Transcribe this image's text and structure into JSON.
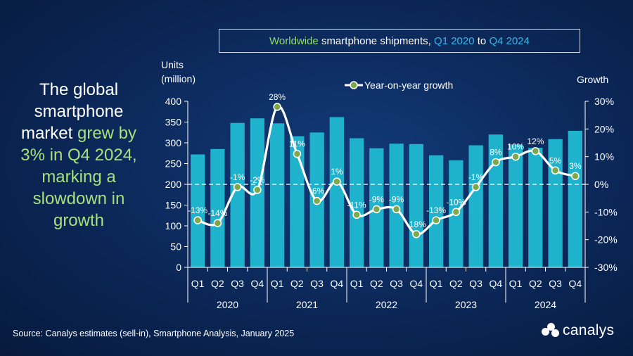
{
  "title": {
    "part1": "Worldwide",
    "part2": "smartphone shipments,",
    "part3": "Q1 2020",
    "part4": "to",
    "part5": "Q4 2024"
  },
  "headline": {
    "part1": "The global smartphone market",
    "part2": "grew by 3% in Q4 2024, marking a slowdown in growth"
  },
  "source": "Source: Canalys estimates (sell-in), Smartphone Analysis, January 2025",
  "logo": "canalys",
  "colors": {
    "bar": "#1fb2cc",
    "line": "#ffffff",
    "marker": "#7fa84a",
    "title_green": "#8fdc6a",
    "title_blue": "#39b6e6"
  },
  "chart_data": {
    "type": "bar",
    "y_left_label_line1": "Units",
    "y_left_label_line2": "(million)",
    "y_right_label": "Growth",
    "y_left_lim": [
      0,
      400
    ],
    "y_left_ticks": [
      "0",
      "50",
      "100",
      "150",
      "200",
      "250",
      "300",
      "350",
      "400"
    ],
    "y_right_lim": [
      -30,
      30
    ],
    "y_right_ticks": [
      "-30%",
      "-20%",
      "-10%",
      "0%",
      "10%",
      "20%",
      "30%"
    ],
    "categories": [
      "Q1",
      "Q2",
      "Q3",
      "Q4",
      "Q1",
      "Q2",
      "Q3",
      "Q4",
      "Q1",
      "Q2",
      "Q3",
      "Q4",
      "Q1",
      "Q2",
      "Q3",
      "Q4",
      "Q1",
      "Q2",
      "Q3",
      "Q4"
    ],
    "years": [
      "2020",
      "2021",
      "2022",
      "2023",
      "2024"
    ],
    "legend": "Year-on-year growth",
    "series": [
      {
        "name": "Units (million)",
        "values": [
          272,
          285,
          348,
          359,
          347,
          316,
          325,
          362,
          311,
          287,
          298,
          297,
          270,
          258,
          294,
          320,
          296,
          288,
          309,
          329
        ]
      },
      {
        "name": "Year-on-year growth",
        "values": [
          -13,
          -14,
          -1,
          -2,
          28,
          11,
          -6,
          1,
          -11,
          -9,
          -9,
          -18,
          -13,
          -10,
          -1,
          8,
          10,
          12,
          5,
          3
        ],
        "labels": [
          "-13%",
          "-14%",
          "-1%",
          "-2%",
          "28%",
          "11%",
          "-6%",
          "1%",
          "-11%",
          "-9%",
          "-9%",
          "-18%",
          "-13%",
          "-10%",
          "-1%",
          "8%",
          "10%",
          "12%",
          "5%",
          "3%"
        ]
      }
    ]
  }
}
